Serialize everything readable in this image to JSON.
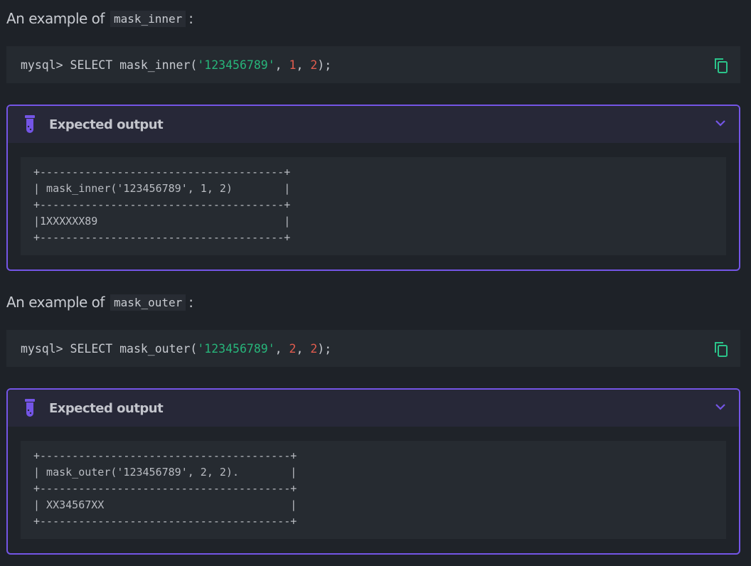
{
  "examples": [
    {
      "heading_prefix": "An example of",
      "function_name": "mask_inner",
      "heading_suffix": ":",
      "code": {
        "prompt": "mysql> SELECT mask_inner(",
        "str": "'123456789'",
        "sep1": ", ",
        "n1": "1",
        "sep2": ", ",
        "n2": "2",
        "end": ");"
      },
      "output_title": "Expected output",
      "output_lines": [
        "+--------------------------------------+",
        "| mask_inner('123456789', 1, 2)        |",
        "+--------------------------------------+",
        "|1XXXXXX89                             |",
        "+--------------------------------------+"
      ]
    },
    {
      "heading_prefix": "An example of",
      "function_name": "mask_outer",
      "heading_suffix": ":",
      "code": {
        "prompt": "mysql> SELECT mask_outer(",
        "str": "'123456789'",
        "sep1": ", ",
        "n1": "2",
        "sep2": ", ",
        "n2": "2",
        "end": ");"
      },
      "output_title": "Expected output",
      "output_lines": [
        "+---------------------------------------+",
        "| mask_outer('123456789', 2, 2).        |",
        "+---------------------------------------+",
        "| XX34567XX                             |",
        "+---------------------------------------+"
      ]
    }
  ],
  "icons": {
    "copy": "copy-icon",
    "flask": "test-tube-icon",
    "chevron": "chevron-down-icon"
  },
  "colors": {
    "accent": "#7455e6",
    "string": "#27b57a",
    "number": "#e25c4e",
    "copy": "#2bc48a"
  }
}
